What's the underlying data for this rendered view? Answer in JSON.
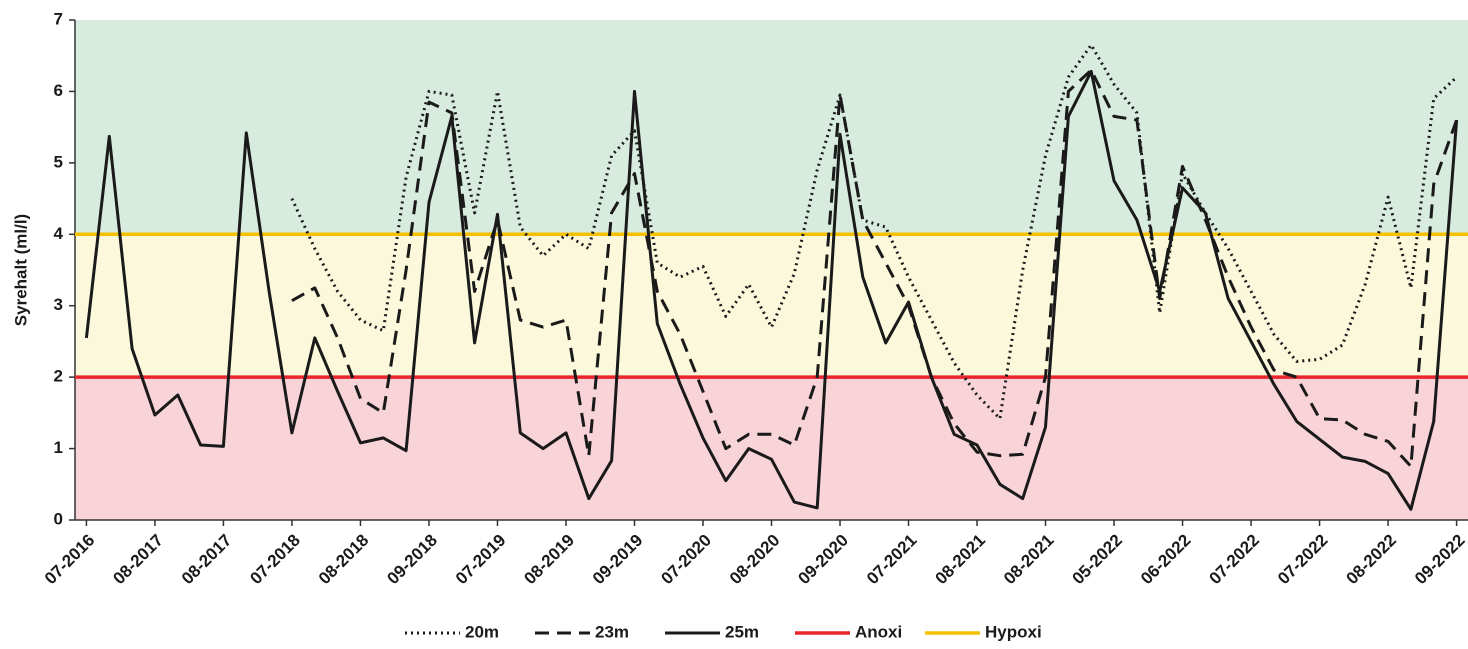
{
  "chart_data": {
    "type": "line",
    "ylabel": "Syrehalt (ml/l)",
    "ylim": [
      0,
      7
    ],
    "yticks": [
      0,
      1,
      2,
      3,
      4,
      5,
      6,
      7
    ],
    "categories": [
      "07-2016",
      null,
      null,
      "08-2017",
      null,
      null,
      "08-2017",
      null,
      null,
      "07-2018",
      null,
      null,
      "08-2018",
      null,
      null,
      "09-2018",
      null,
      null,
      "07-2019",
      null,
      null,
      "08-2019",
      null,
      null,
      "09-2019",
      null,
      null,
      "07-2020",
      null,
      null,
      "08-2020",
      null,
      null,
      "09-2020",
      null,
      null,
      "07-2021",
      null,
      null,
      "08-2021",
      null,
      null,
      "08-2021",
      null,
      null,
      "05-2022",
      null,
      null,
      "06-2022",
      null,
      null,
      "07-2022",
      null,
      null,
      "07-2022",
      null,
      null,
      "08-2022",
      null,
      null,
      "09-2022"
    ],
    "series": [
      {
        "name": "20m",
        "color": "#1a1a1a",
        "dash": "dotted",
        "values": [
          null,
          null,
          null,
          null,
          null,
          null,
          null,
          null,
          null,
          4.5,
          3.8,
          3.2,
          2.8,
          2.65,
          4.8,
          6.0,
          5.95,
          4.3,
          6.0,
          4.1,
          3.7,
          4.0,
          3.8,
          5.1,
          5.45,
          3.6,
          3.4,
          3.55,
          2.85,
          3.3,
          2.7,
          3.45,
          4.9,
          5.95,
          4.2,
          4.1,
          3.4,
          2.8,
          2.2,
          1.75,
          1.42,
          3.5,
          5.1,
          6.2,
          6.65,
          6.1,
          5.7,
          2.9,
          4.85,
          4.3,
          3.8,
          3.2,
          2.6,
          2.22,
          2.25,
          2.45,
          3.3,
          4.52,
          3.25,
          5.9,
          6.2
        ]
      },
      {
        "name": "23m",
        "color": "#1a1a1a",
        "dash": "dashed",
        "values": [
          null,
          null,
          null,
          null,
          null,
          null,
          null,
          null,
          null,
          3.07,
          3.25,
          2.55,
          1.7,
          1.5,
          3.5,
          5.85,
          5.7,
          3.2,
          4.2,
          2.8,
          2.7,
          2.8,
          0.9,
          4.3,
          4.85,
          3.2,
          2.6,
          1.8,
          1.0,
          1.2,
          1.2,
          1.05,
          2.0,
          5.95,
          4.2,
          3.6,
          3.0,
          2.0,
          1.35,
          0.95,
          0.9,
          0.92,
          2.0,
          6.0,
          6.3,
          5.65,
          5.6,
          3.1,
          4.95,
          4.2,
          3.4,
          2.7,
          2.1,
          2.0,
          1.42,
          1.4,
          1.2,
          1.1,
          0.75,
          4.7,
          5.6
        ]
      },
      {
        "name": "25m",
        "color": "#1a1a1a",
        "dash": "solid",
        "values": [
          2.55,
          5.37,
          2.4,
          1.47,
          1.75,
          1.05,
          1.03,
          5.42,
          3.2,
          1.22,
          2.55,
          1.8,
          1.08,
          1.15,
          0.97,
          4.45,
          5.65,
          2.48,
          4.28,
          1.22,
          1.0,
          1.22,
          0.3,
          0.83,
          6.0,
          2.75,
          1.9,
          1.15,
          0.55,
          1.0,
          0.85,
          0.25,
          0.17,
          5.4,
          3.4,
          2.48,
          3.05,
          2.0,
          1.2,
          1.05,
          0.5,
          0.3,
          1.3,
          5.65,
          6.28,
          4.75,
          4.2,
          3.2,
          4.65,
          4.3,
          3.1,
          2.5,
          1.9,
          1.38,
          1.13,
          0.88,
          0.82,
          0.65,
          0.15,
          1.38,
          5.6
        ]
      }
    ],
    "thresholds": [
      {
        "name": "Anoxi",
        "value": 2,
        "color": "#e8262c",
        "band_color": "#f8d3d8"
      },
      {
        "name": "Hypoxi",
        "value": 4,
        "color": "#f5c000",
        "band_color": "#fbf8dc"
      }
    ],
    "top_band_color": "#d8ebdf"
  }
}
